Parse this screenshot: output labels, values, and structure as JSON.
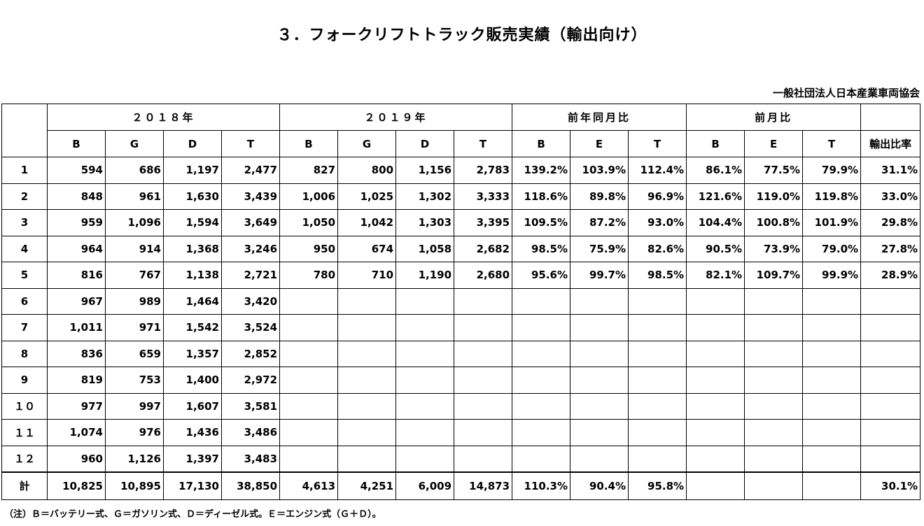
{
  "title": "３．フォークリフトトラック販売実績（輸出向け）",
  "organization": "一般社団法人日本産業車両協会",
  "groups": {
    "y2018": "２０１８年",
    "y2019": "２０１９年",
    "yoy": "前年同月比",
    "mom": "前月比"
  },
  "subheaders": [
    "B",
    "G",
    "D",
    "T",
    "B",
    "G",
    "D",
    "T",
    "B",
    "E",
    "T",
    "B",
    "E",
    "T",
    "輸出比率"
  ],
  "rows": [
    {
      "label": "1",
      "cells": [
        "594",
        "686",
        "1,197",
        "2,477",
        "827",
        "800",
        "1,156",
        "2,783",
        "139.2%",
        "103.9%",
        "112.4%",
        "86.1%",
        "77.5%",
        "79.9%",
        "31.1%"
      ]
    },
    {
      "label": "2",
      "cells": [
        "848",
        "961",
        "1,630",
        "3,439",
        "1,006",
        "1,025",
        "1,302",
        "3,333",
        "118.6%",
        "89.8%",
        "96.9%",
        "121.6%",
        "119.0%",
        "119.8%",
        "33.0%"
      ]
    },
    {
      "label": "3",
      "cells": [
        "959",
        "1,096",
        "1,594",
        "3,649",
        "1,050",
        "1,042",
        "1,303",
        "3,395",
        "109.5%",
        "87.2%",
        "93.0%",
        "104.4%",
        "100.8%",
        "101.9%",
        "29.8%"
      ]
    },
    {
      "label": "4",
      "cells": [
        "964",
        "914",
        "1,368",
        "3,246",
        "950",
        "674",
        "1,058",
        "2,682",
        "98.5%",
        "75.9%",
        "82.6%",
        "90.5%",
        "73.9%",
        "79.0%",
        "27.8%"
      ]
    },
    {
      "label": "5",
      "cells": [
        "816",
        "767",
        "1,138",
        "2,721",
        "780",
        "710",
        "1,190",
        "2,680",
        "95.6%",
        "99.7%",
        "98.5%",
        "82.1%",
        "109.7%",
        "99.9%",
        "28.9%"
      ]
    },
    {
      "label": "6",
      "cells": [
        "967",
        "989",
        "1,464",
        "3,420",
        "",
        "",
        "",
        "",
        "",
        "",
        "",
        "",
        "",
        "",
        ""
      ]
    },
    {
      "label": "7",
      "cells": [
        "1,011",
        "971",
        "1,542",
        "3,524",
        "",
        "",
        "",
        "",
        "",
        "",
        "",
        "",
        "",
        "",
        ""
      ]
    },
    {
      "label": "8",
      "cells": [
        "836",
        "659",
        "1,357",
        "2,852",
        "",
        "",
        "",
        "",
        "",
        "",
        "",
        "",
        "",
        "",
        ""
      ]
    },
    {
      "label": "9",
      "cells": [
        "819",
        "753",
        "1,400",
        "2,972",
        "",
        "",
        "",
        "",
        "",
        "",
        "",
        "",
        "",
        "",
        ""
      ]
    },
    {
      "label": "１０",
      "cells": [
        "977",
        "997",
        "1,607",
        "3,581",
        "",
        "",
        "",
        "",
        "",
        "",
        "",
        "",
        "",
        "",
        ""
      ]
    },
    {
      "label": "１１",
      "cells": [
        "1,074",
        "976",
        "1,436",
        "3,486",
        "",
        "",
        "",
        "",
        "",
        "",
        "",
        "",
        "",
        "",
        ""
      ]
    },
    {
      "label": "１２",
      "cells": [
        "960",
        "1,126",
        "1,397",
        "3,483",
        "",
        "",
        "",
        "",
        "",
        "",
        "",
        "",
        "",
        "",
        ""
      ]
    }
  ],
  "total": {
    "label": "計",
    "cells": [
      "10,825",
      "10,895",
      "17,130",
      "38,850",
      "4,613",
      "4,251",
      "6,009",
      "14,873",
      "110.3%",
      "90.4%",
      "95.8%",
      "",
      "",
      "",
      "30.1%"
    ]
  },
  "note": "（注）Ｂ＝バッテリー式、Ｇ＝ガソリン式、Ｄ＝ディーゼル式。Ｅ＝エンジン式（Ｇ＋Ｄ）。"
}
